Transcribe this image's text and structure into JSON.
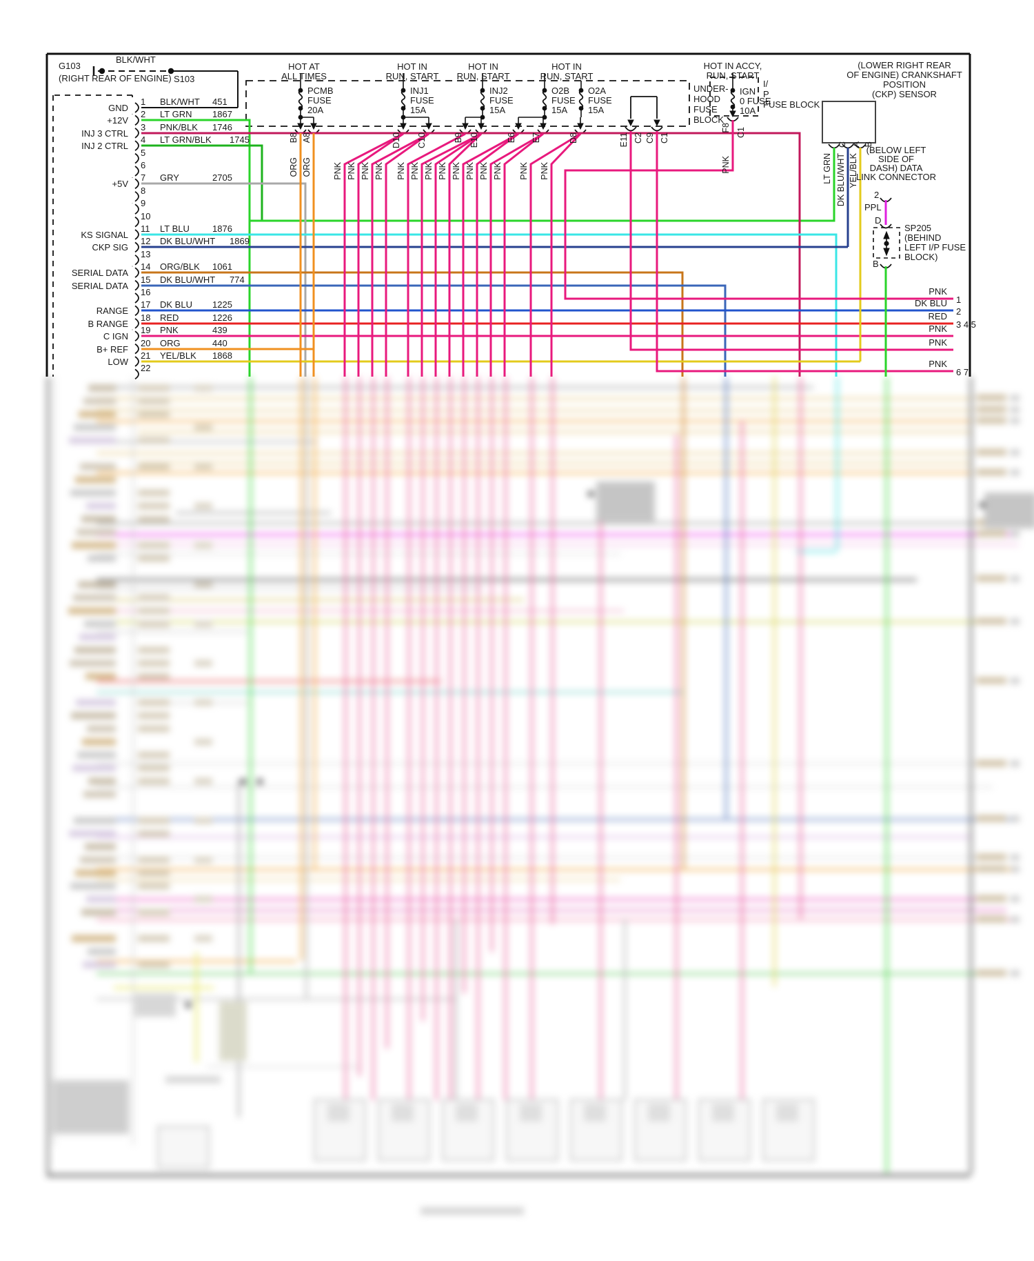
{
  "ground": {
    "id": "G103",
    "location": "(RIGHT REAR OF ENGINE)",
    "splice": "S103",
    "wire": "BLK/WHT"
  },
  "pcm_pins": [
    {
      "pin": "1",
      "signal": "GND",
      "color": "BLK/WHT",
      "circuit": "451"
    },
    {
      "pin": "2",
      "signal": "+12V",
      "color": "LT GRN",
      "circuit": "1867"
    },
    {
      "pin": "3",
      "signal": "INJ 3 CTRL",
      "color": "PNK/BLK",
      "circuit": "1746"
    },
    {
      "pin": "4",
      "signal": "INJ 2 CTRL",
      "color": "LT GRN/BLK",
      "circuit": "1745"
    },
    {
      "pin": "5",
      "signal": "",
      "color": "",
      "circuit": ""
    },
    {
      "pin": "6",
      "signal": "",
      "color": "",
      "circuit": ""
    },
    {
      "pin": "7",
      "signal": "+5V",
      "color": "GRY",
      "circuit": "2705"
    },
    {
      "pin": "8",
      "signal": "",
      "color": "",
      "circuit": ""
    },
    {
      "pin": "9",
      "signal": "",
      "color": "",
      "circuit": ""
    },
    {
      "pin": "10",
      "signal": "",
      "color": "",
      "circuit": ""
    },
    {
      "pin": "11",
      "signal": "KS SIGNAL",
      "color": "LT BLU",
      "circuit": "1876"
    },
    {
      "pin": "12",
      "signal": "CKP SIG",
      "color": "DK BLU/WHT",
      "circuit": "1869"
    },
    {
      "pin": "13",
      "signal": "",
      "color": "",
      "circuit": ""
    },
    {
      "pin": "14",
      "signal": "SERIAL DATA",
      "color": "ORG/BLK",
      "circuit": "1061"
    },
    {
      "pin": "15",
      "signal": "SERIAL DATA",
      "color": "DK BLU/WHT",
      "circuit": "774"
    },
    {
      "pin": "16",
      "signal": "",
      "color": "",
      "circuit": ""
    },
    {
      "pin": "17",
      "signal": "RANGE",
      "color": "DK BLU",
      "circuit": "1225"
    },
    {
      "pin": "18",
      "signal": "B RANGE",
      "color": "RED",
      "circuit": "1226"
    },
    {
      "pin": "19",
      "signal": "C IGN",
      "color": "PNK",
      "circuit": "439"
    },
    {
      "pin": "20",
      "signal": "B+ REF",
      "color": "ORG",
      "circuit": "440"
    },
    {
      "pin": "21",
      "signal": "LOW",
      "color": "YEL/BLK",
      "circuit": "1868"
    },
    {
      "pin": "22",
      "signal": "",
      "color": "",
      "circuit": ""
    }
  ],
  "fuses": [
    {
      "hot1": "HOT AT",
      "hot2": "ALL TIMES",
      "name": "PCMB",
      "word": "FUSE",
      "amp": "20A"
    },
    {
      "hot1": "HOT IN",
      "hot2": "RUN, START",
      "name": "INJ1",
      "word": "FUSE",
      "amp": "15A"
    },
    {
      "hot1": "HOT IN",
      "hot2": "RUN, START",
      "name": "INJ2",
      "word": "FUSE",
      "amp": "15A"
    },
    {
      "hot1": "HOT IN",
      "hot2": "RUN, START",
      "name": "O2B",
      "word": "FUSE",
      "amp": "15A"
    },
    {
      "hot1": "",
      "hot2": "",
      "name": "O2A",
      "word": "FUSE",
      "amp": "15A"
    }
  ],
  "ign_fuse": {
    "hot1": "HOT IN ACCY,",
    "hot2": "RUN, START",
    "name": "IGN",
    "word": "0 FUSE",
    "amp": "10A"
  },
  "underhood_block": [
    "UNDER-",
    "HOOD",
    "FUSE",
    "BLOCK"
  ],
  "ip_block": [
    "I/",
    "P",
    "FUSE BLOCK"
  ],
  "terminal_ids": [
    "B8",
    "A8",
    "D10",
    "C10",
    "B9",
    "E10",
    "E6",
    "E7",
    "D8",
    "E11",
    "C2",
    "C9",
    "C1"
  ],
  "ign_terminals": {
    "left": "F8",
    "right": "C1"
  },
  "wire_colors": {
    "org": "ORG",
    "pnk": "PNK"
  },
  "ckp_sensor": {
    "title": [
      "(LOWER RIGHT REAR",
      "OF ENGINE) CRANKSHAFT",
      "POSITION",
      "(CKP) SENSOR"
    ],
    "pins": [
      {
        "letter": "C",
        "color": "LT GRN"
      },
      {
        "letter": "A",
        "color": "DK BLU/WHT"
      },
      {
        "letter": "B",
        "color": "YEL/BLK"
      }
    ]
  },
  "dlc": {
    "title": [
      "(BELOW LEFT",
      "SIDE OF",
      "DASH) DATA",
      "LINK CONNECTOR"
    ],
    "pin": "2",
    "wire": "PPL",
    "terminal": "D"
  },
  "sp205": {
    "label": [
      "SP205",
      "(BEHIND",
      "LEFT I/P FUSE",
      "BLOCK)"
    ],
    "terminal": "B"
  },
  "right_exits": [
    {
      "color": "PNK",
      "pins": "1"
    },
    {
      "color": "DK BLU",
      "pins": "2"
    },
    {
      "color": "RED",
      "pins": "3 4 5"
    },
    {
      "color": "PNK",
      "pins": ""
    },
    {
      "color": "PNK",
      "pins": ""
    },
    {
      "color": "PNK",
      "pins": "6 7"
    }
  ],
  "palette": {
    "pnk": "#e8197d",
    "pnk_blk": "#c2185b",
    "red": "#e82222",
    "org": "#f09020",
    "org_blk": "#c8761a",
    "lt_grn": "#2ad42a",
    "lt_grn_blk": "#1db31d",
    "dk_blu": "#2255cc",
    "dk_blu_wht": "#27408f",
    "dk_blu_wht2": "#3a66b8",
    "yel_blk": "#e3cb1c",
    "ppl": "#e020e0",
    "lt_blu": "#3ae6e6",
    "gry": "#a8a8a8",
    "blk": "#111111"
  }
}
